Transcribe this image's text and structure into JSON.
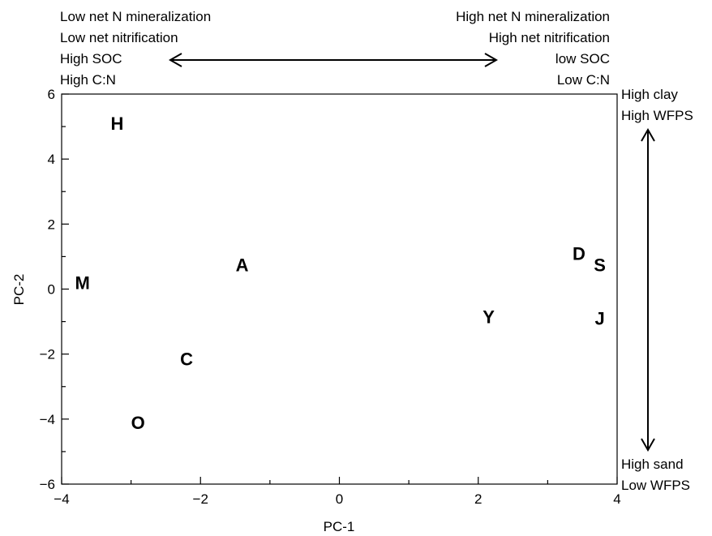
{
  "chart_data": {
    "type": "scatter",
    "title": "",
    "xlabel": "PC-1",
    "ylabel": "PC-2",
    "xlim": [
      -4,
      4
    ],
    "ylim": [
      -6,
      6
    ],
    "xticks": [
      "−4",
      "−2",
      "0",
      "2",
      "4"
    ],
    "yticks": [
      "−6",
      "−4",
      "−2",
      "0",
      "2",
      "4",
      "6"
    ],
    "grid": false,
    "points": [
      {
        "label": "H",
        "x": -3.2,
        "y": 5.1
      },
      {
        "label": "A",
        "x": -1.4,
        "y": 0.75
      },
      {
        "label": "M",
        "x": -3.7,
        "y": 0.2
      },
      {
        "label": "C",
        "x": -2.2,
        "y": -2.15
      },
      {
        "label": "O",
        "x": -2.9,
        "y": -4.1
      },
      {
        "label": "Y",
        "x": 2.15,
        "y": -0.85
      },
      {
        "label": "D",
        "x": 3.45,
        "y": 1.1
      },
      {
        "label": "S",
        "x": 3.75,
        "y": 0.75
      },
      {
        "label": "J",
        "x": 3.75,
        "y": -0.9
      }
    ],
    "annotations": {
      "left": [
        "Low net N mineralization",
        "Low net nitrification",
        "High SOC",
        "High C:N"
      ],
      "right": [
        "High net N mineralization",
        "High net nitrification",
        "low SOC",
        "Low C:N"
      ],
      "top_right": [
        "High clay",
        "High WFPS"
      ],
      "bottom_right": [
        "High sand",
        "Low WFPS"
      ]
    }
  }
}
